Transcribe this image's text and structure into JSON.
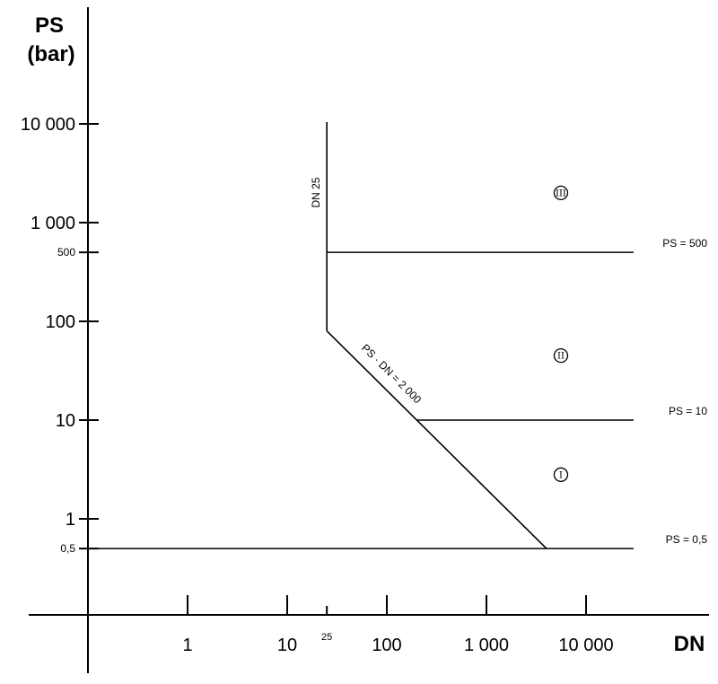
{
  "chart_data": {
    "type": "line",
    "title": "",
    "xlabel": "DN",
    "ylabel": [
      "PS",
      "(bar)"
    ],
    "x_scale": "log",
    "y_scale": "log",
    "x_ticks": [
      {
        "value": 1,
        "label": "1"
      },
      {
        "value": 10,
        "label": "10"
      },
      {
        "value": 25,
        "label": "25"
      },
      {
        "value": 100,
        "label": "100"
      },
      {
        "value": 1000,
        "label": "1 000"
      },
      {
        "value": 10000,
        "label": "10 000"
      }
    ],
    "y_ticks": [
      {
        "value": 0.5,
        "label": "0,5"
      },
      {
        "value": 1,
        "label": "1"
      },
      {
        "value": 10,
        "label": "10"
      },
      {
        "value": 100,
        "label": "100"
      },
      {
        "value": 500,
        "label": "500"
      },
      {
        "value": 1000,
        "label": "1 000"
      },
      {
        "value": 10000,
        "label": "10 000"
      }
    ],
    "boundaries": [
      {
        "id": "dn25",
        "points": [
          [
            25,
            80
          ],
          [
            25,
            10000
          ]
        ],
        "label": "DN 25"
      },
      {
        "id": "ps500",
        "points": [
          [
            25,
            500
          ],
          [
            30000,
            500
          ]
        ],
        "label": "PS = 500"
      },
      {
        "id": "psdn2000",
        "points": [
          [
            25,
            80
          ],
          [
            4000,
            0.5
          ]
        ],
        "label": "PS · DN = 2 000"
      },
      {
        "id": "ps10",
        "points": [
          [
            200,
            10
          ],
          [
            30000,
            10
          ]
        ],
        "label": "PS = 10"
      },
      {
        "id": "ps05",
        "points": [
          [
            0.1,
            0.5
          ],
          [
            30000,
            0.5
          ]
        ],
        "label": "PS = 0,5"
      }
    ],
    "zones": [
      {
        "label": "III",
        "x": 3000,
        "y": 2000
      },
      {
        "label": "II",
        "x": 3000,
        "y": 45
      },
      {
        "label": "I",
        "x": 3000,
        "y": 2.8
      }
    ],
    "grid": false,
    "legend": "none"
  }
}
